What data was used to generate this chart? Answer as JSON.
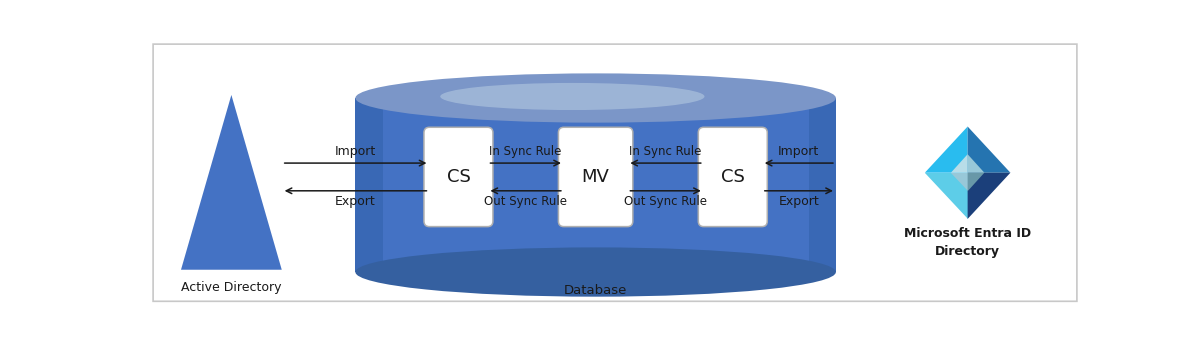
{
  "bg_color": "#ffffff",
  "border_color": "#c8c8c8",
  "triangle_color": "#4472C4",
  "cylinder_top_color": "#7B96C8",
  "cylinder_body_color": "#4472C4",
  "cylinder_bottom_color": "#3560A0",
  "cylinder_shadow_color": "#3060A8",
  "box_color": "#ffffff",
  "arrow_color": "#1a1a1a",
  "text_color": "#1a1a1a",
  "label_cs_left": "CS",
  "label_mv": "MV",
  "label_cs_right": "CS",
  "label_import_left": "Import",
  "label_export_left": "Export",
  "label_import_right": "Import",
  "label_export_right": "Export",
  "label_in_sync_left": "In Sync Rule",
  "label_out_sync_left": "Out Sync Rule",
  "label_in_sync_right": "In Sync Rule",
  "label_out_sync_right": "Out Sync Rule",
  "label_active_directory": "Active Directory",
  "label_database": "Database",
  "label_ms_entra_line1": "Microsoft Entra ID",
  "label_ms_entra_line2": "Directory",
  "entra_cyan": "#29BCEF",
  "entra_dark": "#1B3F7A",
  "entra_mid": "#2574B0",
  "entra_light_cyan": "#5DCDE8",
  "entra_inner_light": "#B8DDE8",
  "entra_inner_mid": "#98C8D8",
  "entra_inner_dark": "#6898A8",
  "figsize": [
    12.0,
    3.42
  ],
  "dpi": 100,
  "xlim": [
    0,
    12
  ],
  "ylim": [
    0,
    3.42
  ]
}
